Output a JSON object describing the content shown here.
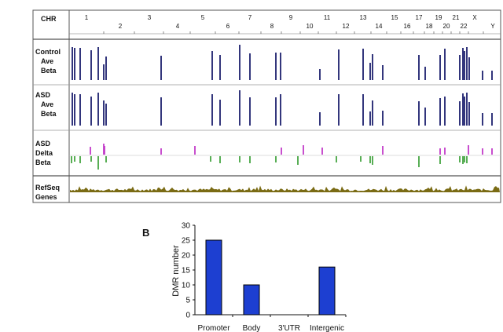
{
  "chart_data": [
    {
      "type": "genome-track",
      "header_label": "CHR",
      "chromosomes_row1": [
        "1",
        "3",
        "5",
        "7",
        "9",
        "11",
        "13",
        "15",
        "17",
        "19",
        "21",
        "X"
      ],
      "chromosomes_row2": [
        "2",
        "4",
        "6",
        "8",
        "10",
        "12",
        "14",
        "16",
        "18",
        "20",
        "22",
        "Y"
      ],
      "tracks": [
        {
          "name": "control-ave-beta",
          "label": [
            "Control",
            "Ave",
            "Beta"
          ],
          "color": "#1c1f6e"
        },
        {
          "name": "asd-ave-beta",
          "label": [
            "ASD",
            "Ave",
            "Beta"
          ],
          "color": "#1c1f6e"
        },
        {
          "name": "asd-delta-beta",
          "label": [
            "ASD",
            "Delta",
            "Beta"
          ],
          "up_color": "#c23bc9",
          "down_color": "#2e9a2a"
        },
        {
          "name": "refseq-genes",
          "label": [
            "RefSeq",
            "Genes"
          ],
          "color": "#7a6b14"
        }
      ]
    },
    {
      "type": "bar",
      "panel_label": "B",
      "categories": [
        "Promoter",
        "Body",
        "3'UTR",
        "Intergenic"
      ],
      "values": [
        25,
        10,
        0,
        16
      ],
      "ylabel": "DMR number",
      "xlabel": "",
      "ylim": [
        0,
        30
      ],
      "yticks": [
        0,
        5,
        10,
        15,
        20,
        25,
        30
      ],
      "bar_color": "#1d3fd1"
    }
  ]
}
